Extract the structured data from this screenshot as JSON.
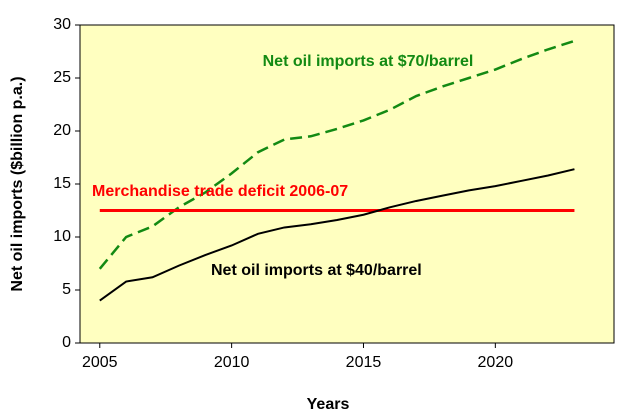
{
  "chart_data": {
    "type": "line",
    "x_label": "Years",
    "y_label": "Net oil imports ($billion p.a.)",
    "x": [
      2005,
      2006,
      2007,
      2008,
      2009,
      2010,
      2011,
      2012,
      2013,
      2014,
      2015,
      2016,
      2017,
      2018,
      2019,
      2020,
      2021,
      2022,
      2023
    ],
    "series": [
      {
        "name": "Net oil imports at $70/barrel",
        "color": "#138a13",
        "dashed": true,
        "values": [
          7.0,
          10.0,
          11.0,
          12.8,
          14.2,
          16.0,
          18.0,
          19.2,
          19.5,
          20.2,
          21.0,
          22.0,
          23.3,
          24.2,
          25.0,
          25.8,
          26.8,
          27.7,
          28.5
        ]
      },
      {
        "name": "Merchandise trade deficit 2006-07",
        "color": "#ff0000",
        "dashed": false,
        "values": [
          12.5,
          12.5,
          12.5,
          12.5,
          12.5,
          12.5,
          12.5,
          12.5,
          12.5,
          12.5,
          12.5,
          12.5,
          12.5,
          12.5,
          12.5,
          12.5,
          12.5,
          12.5,
          12.5
        ]
      },
      {
        "name": "Net oil imports at $40/barrel",
        "color": "#000000",
        "dashed": false,
        "values": [
          4.0,
          5.8,
          6.2,
          7.3,
          8.3,
          9.2,
          10.3,
          10.9,
          11.2,
          11.6,
          12.1,
          12.8,
          13.4,
          13.9,
          14.4,
          14.8,
          15.3,
          15.8,
          16.4
        ]
      }
    ],
    "xlim": [
      2004.25,
      2024.5
    ],
    "ylim": [
      0,
      30
    ],
    "xticks": [
      2005,
      2010,
      2015,
      2020
    ],
    "yticks": [
      0,
      5,
      10,
      15,
      20,
      25,
      30
    ],
    "plot_background": "#ffffc0"
  }
}
